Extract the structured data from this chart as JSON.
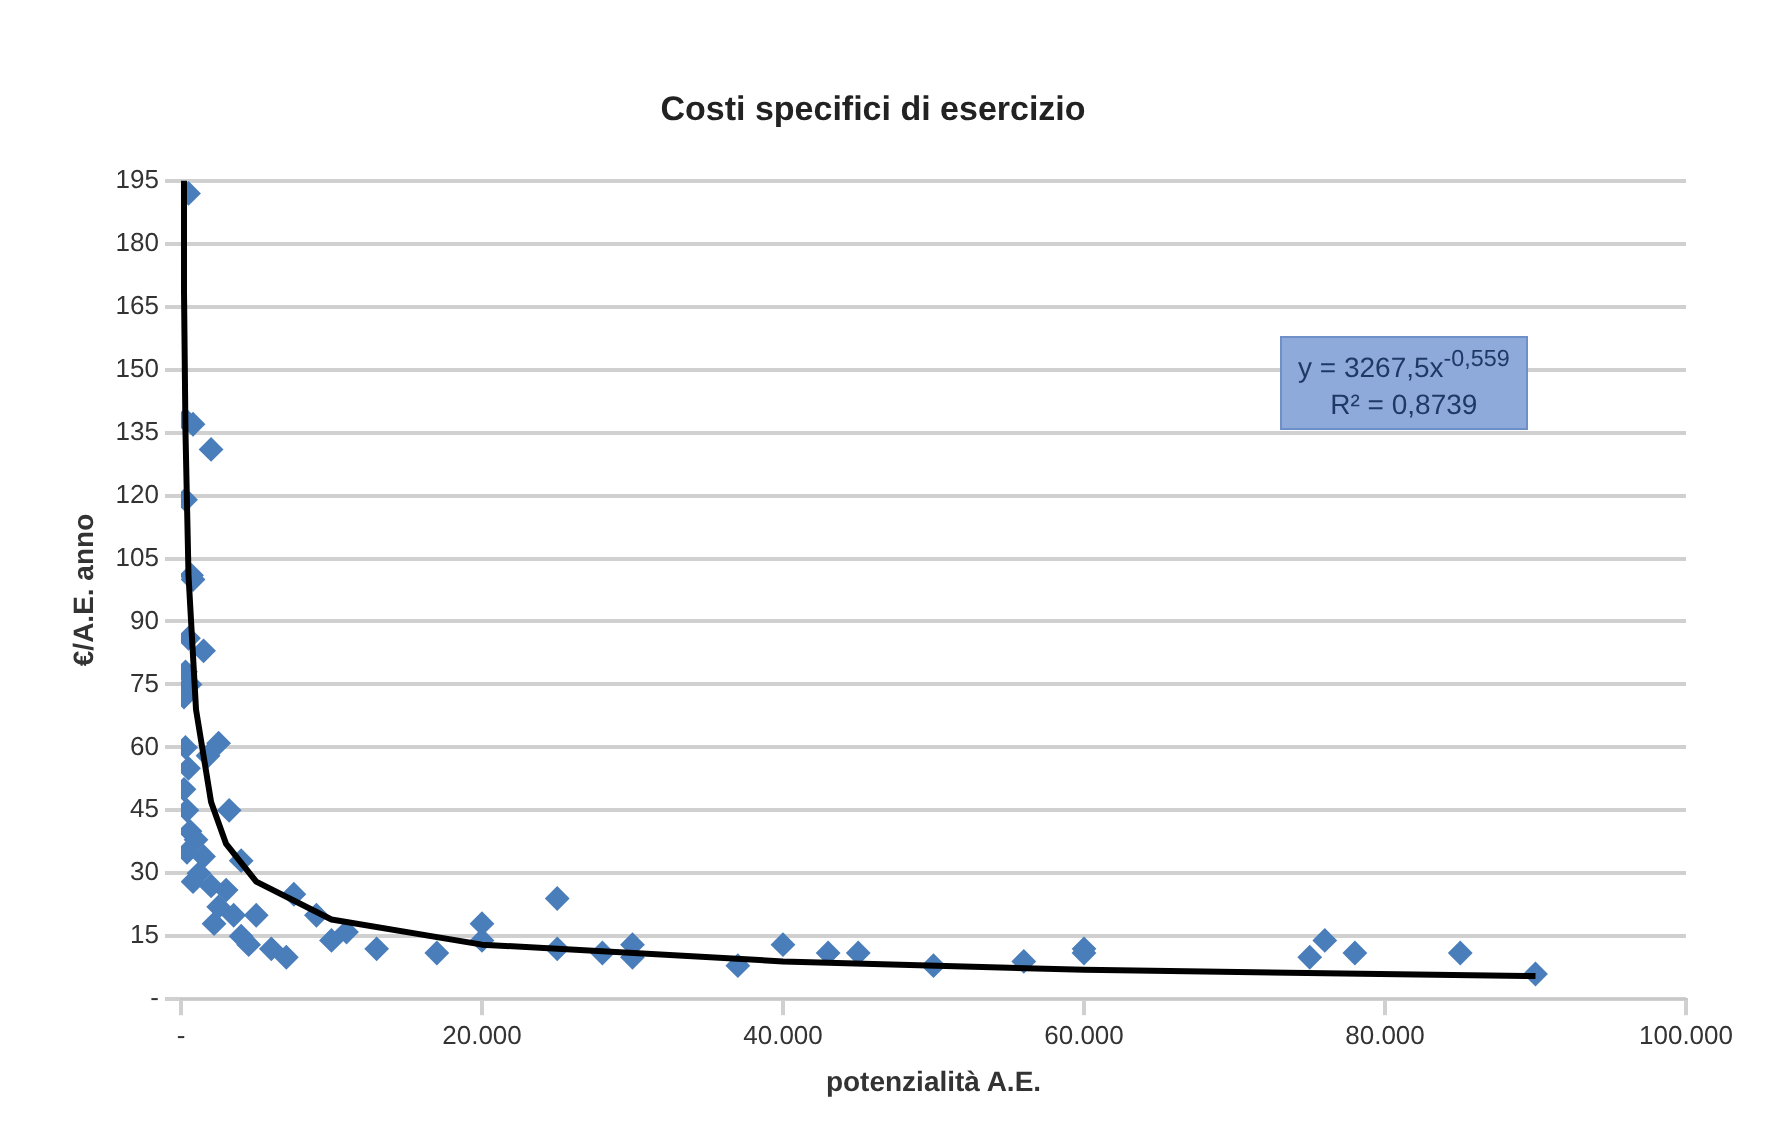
{
  "chart_data": {
    "type": "scatter",
    "title": "Costi specifici di esercizio",
    "xlabel": "potenzialità A.E.",
    "ylabel": "€/A.E. anno",
    "xlim": [
      0,
      100000
    ],
    "xticks": [
      {
        "value": 0,
        "label": "-"
      },
      {
        "value": 20000,
        "label": "20.000"
      },
      {
        "value": 40000,
        "label": "40.000"
      },
      {
        "value": 60000,
        "label": "60.000"
      },
      {
        "value": 80000,
        "label": "80.000"
      },
      {
        "value": 100000,
        "label": "100.000"
      }
    ],
    "ylim": [
      0,
      195
    ],
    "yticks": [
      {
        "value": 0,
        "label": "-"
      },
      15,
      30,
      45,
      60,
      75,
      90,
      105,
      120,
      135,
      150,
      165,
      180,
      195
    ],
    "grid": "y",
    "legend": false,
    "marker": "diamond",
    "annotations": [
      "y = 3267,5x$^{-0,559}$",
      "R² = 0,8739"
    ],
    "series": [
      {
        "type": "scatter",
        "color": "#4a7ebb",
        "x": [
          500,
          300,
          800,
          2000,
          300,
          700,
          800,
          500,
          1500,
          300,
          200,
          600,
          2500,
          1800,
          300,
          500,
          200,
          400,
          3200,
          600,
          1000,
          400,
          1500,
          4000,
          1200,
          2000,
          3000,
          800,
          2500,
          3500,
          5000,
          2200,
          4000,
          4500,
          6000,
          7000,
          7500,
          9000,
          10000,
          11000,
          13000,
          17000,
          20000,
          20000,
          25000,
          25000,
          28000,
          30000,
          30000,
          37000,
          40000,
          43000,
          45000,
          50000,
          56000,
          60000,
          60000,
          75000,
          76000,
          78000,
          85000,
          90000
        ],
        "values": [
          192,
          138,
          137,
          131,
          119,
          101,
          100,
          86,
          83,
          78,
          72,
          75,
          61,
          58,
          60,
          55,
          50,
          45,
          45,
          40,
          38,
          35,
          34,
          33,
          30,
          27,
          26,
          28,
          22,
          20,
          20,
          18,
          15,
          13,
          12,
          10,
          25,
          20,
          14,
          16,
          12,
          11,
          18,
          14,
          24,
          12,
          11,
          13,
          10,
          8,
          13,
          11,
          11,
          8,
          9,
          12,
          11,
          10,
          14,
          11,
          11,
          6
        ]
      },
      {
        "type": "line",
        "color": "#000000",
        "marker": "none",
        "x": [
          150,
          200,
          300,
          500,
          1000,
          2000,
          3000,
          5000,
          10000,
          20000,
          40000,
          60000,
          90000
        ],
        "values": [
          195,
          169,
          135,
          101,
          69,
          47,
          37,
          28,
          19,
          13,
          9,
          7,
          5.5
        ]
      }
    ]
  }
}
